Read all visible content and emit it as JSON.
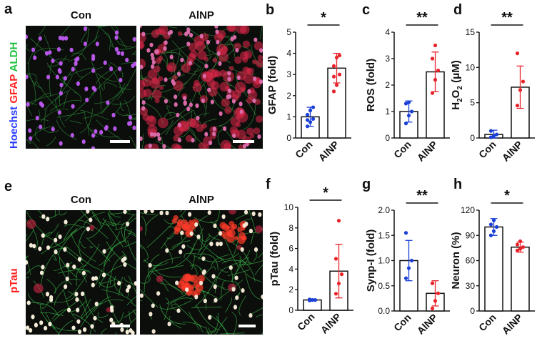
{
  "panels": [
    {
      "letter": "a",
      "image_titles": [
        "Con",
        "AlNP"
      ],
      "stains": [
        {
          "text": "Hoechst",
          "color": "#2a3cff"
        },
        {
          "text": " GFAP",
          "color": "#ff2020"
        },
        {
          "text": " ALDH",
          "color": "#22c040"
        }
      ]
    },
    {
      "letter": "e",
      "image_titles": [
        "Con",
        "AlNP"
      ],
      "stains": [
        {
          "text": "pTau",
          "color": "#ff2020"
        }
      ]
    }
  ],
  "colors": {
    "con": "#1a3fd6",
    "alnp": "#e8232a",
    "bar_edge": "#111111"
  },
  "chart_data": [
    {
      "letter": "b",
      "type": "bar",
      "categories": [
        "Con",
        "AlNP"
      ],
      "values": [
        1.0,
        3.3
      ],
      "errors": [
        0.45,
        0.7
      ],
      "points": [
        [
          0.55,
          0.75,
          0.9,
          1.1,
          1.3,
          1.45,
          0.85
        ],
        [
          2.2,
          2.5,
          3.0,
          3.4,
          3.8,
          3.9,
          2.9
        ]
      ],
      "ylabel": "GFAP (fold)",
      "ylim": [
        0,
        5
      ],
      "yticks": [
        "0",
        "1",
        "2",
        "3",
        "4",
        "5"
      ],
      "sig": "*"
    },
    {
      "letter": "c",
      "type": "bar",
      "categories": [
        "Con",
        "AlNP"
      ],
      "values": [
        1.0,
        2.5
      ],
      "errors": [
        0.4,
        0.75
      ],
      "points": [
        [
          0.55,
          0.85,
          1.0,
          1.3,
          1.35
        ],
        [
          1.7,
          2.2,
          2.55,
          3.0,
          3.5
        ]
      ],
      "ylabel": "ROS (fold)",
      "ylim": [
        0,
        4
      ],
      "yticks": [
        "0",
        "1",
        "2",
        "3",
        "4"
      ],
      "sig": "**"
    },
    {
      "letter": "d",
      "type": "bar",
      "categories": [
        "Con",
        "AlNP"
      ],
      "values": [
        0.5,
        7.2
      ],
      "errors": [
        0.6,
        3.0
      ],
      "points": [
        [
          0.1,
          0.3,
          0.5,
          1.0
        ],
        [
          4.6,
          6.8,
          8.0,
          12.0
        ]
      ],
      "ylabel": "H2O2 (μM)",
      "ylim": [
        0,
        15
      ],
      "yticks": [
        "0",
        "5",
        "10",
        "15"
      ],
      "sig": "**"
    },
    {
      "letter": "f",
      "type": "bar",
      "categories": [
        "Con",
        "AlNP"
      ],
      "values": [
        1.0,
        3.8
      ],
      "errors": [
        0.1,
        2.6
      ],
      "points": [
        [
          0.95,
          1.0,
          1.0,
          1.05
        ],
        [
          1.6,
          2.6,
          3.5,
          5.0,
          8.7
        ]
      ],
      "ylabel": "pTau (fold)",
      "ylim": [
        0,
        10
      ],
      "yticks": [
        "0",
        "2",
        "4",
        "6",
        "8",
        "10"
      ],
      "sig": "*"
    },
    {
      "letter": "g",
      "type": "bar",
      "categories": [
        "Con",
        "AlNP"
      ],
      "values": [
        1.0,
        0.35
      ],
      "errors": [
        0.4,
        0.25
      ],
      "points": [
        [
          0.65,
          0.85,
          1.0,
          1.55
        ],
        [
          0.05,
          0.2,
          0.35,
          0.55
        ]
      ],
      "ylabel": "Synp-I (fold)",
      "ylim": [
        0,
        2.0
      ],
      "yticks": [
        "0.0",
        "0.5",
        "1.0",
        "1.5",
        "2.0"
      ],
      "sig": "**"
    },
    {
      "letter": "h",
      "type": "bar",
      "categories": [
        "Con",
        "AlNP"
      ],
      "values": [
        100,
        76
      ],
      "errors": [
        10,
        6
      ],
      "points": [
        [
          90,
          95,
          100,
          103,
          108
        ],
        [
          72,
          74,
          76,
          79,
          83
        ]
      ],
      "ylabel": "Neuron (%)",
      "ylim": [
        0,
        120
      ],
      "yticks": [
        "0",
        "30",
        "60",
        "90",
        "120"
      ],
      "sig": "*"
    }
  ]
}
